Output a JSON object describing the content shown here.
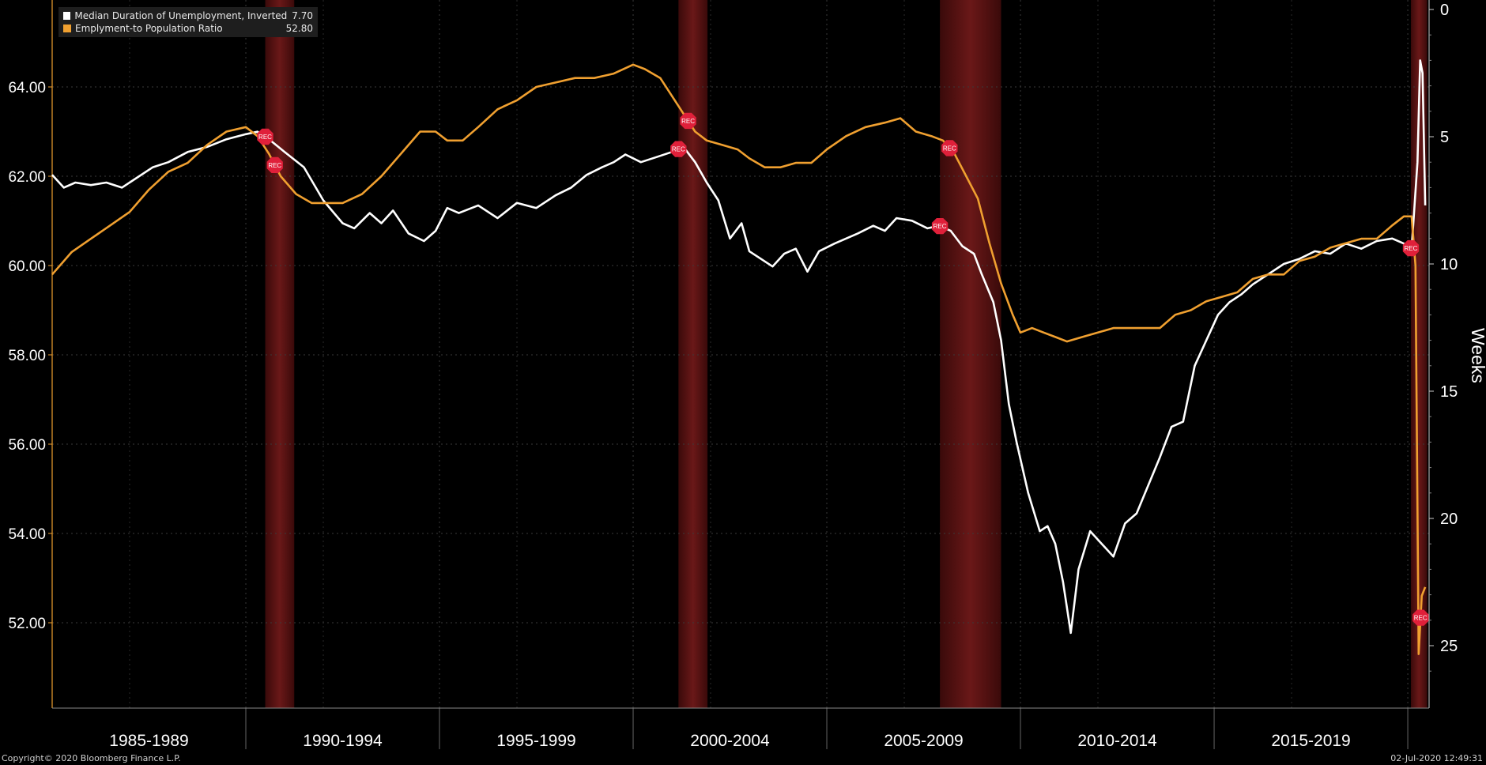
{
  "chart_data": {
    "type": "line",
    "legend_placement": "top-left",
    "grid": true,
    "x_axis": {
      "range": [
        1985.0,
        2020.55
      ],
      "period_labels": [
        {
          "label": "1985-1989",
          "start": 1985,
          "end": 1990
        },
        {
          "label": "1990-1994",
          "start": 1990,
          "end": 1995
        },
        {
          "label": "1995-1999",
          "start": 1995,
          "end": 2000
        },
        {
          "label": "2000-2004",
          "start": 2000,
          "end": 2005
        },
        {
          "label": "2005-2009",
          "start": 2005,
          "end": 2010
        },
        {
          "label": "2010-2014",
          "start": 2010,
          "end": 2015
        },
        {
          "label": "2015-2019",
          "start": 2015,
          "end": 2020
        }
      ]
    },
    "y_left": {
      "range": [
        50.0,
        66.0
      ],
      "ticks": [
        52,
        54,
        56,
        58,
        60,
        62,
        64
      ],
      "tick_labels": [
        "52.00",
        "54.00",
        "56.00",
        "58.00",
        "60.00",
        "62.00",
        "64.00"
      ]
    },
    "y_right": {
      "label": "Weeks",
      "range": [
        0,
        27.5
      ],
      "inverted": true,
      "ticks": [
        0,
        5,
        10,
        15,
        20,
        25
      ],
      "tick_labels": [
        "0",
        "5",
        "10",
        "15",
        "20",
        "25"
      ]
    },
    "recessions": [
      {
        "start": 1990.5,
        "end": 1991.25,
        "label": "REC"
      },
      {
        "start": 2001.17,
        "end": 2001.92,
        "label": "REC"
      },
      {
        "start": 2007.92,
        "end": 2009.5,
        "label": "REC"
      },
      {
        "start": 2020.08,
        "end": 2020.5,
        "label": "REC"
      }
    ],
    "series": [
      {
        "name": "Median Duration of Unemployment, Inverted",
        "last_value": "7.70",
        "color": "#ffffff",
        "axis": "right",
        "points": [
          [
            1985.0,
            6.5
          ],
          [
            1985.3,
            7.0
          ],
          [
            1985.6,
            6.8
          ],
          [
            1986.0,
            6.9
          ],
          [
            1986.4,
            6.8
          ],
          [
            1986.8,
            7.0
          ],
          [
            1987.2,
            6.6
          ],
          [
            1987.6,
            6.2
          ],
          [
            1988.0,
            6.0
          ],
          [
            1988.5,
            5.6
          ],
          [
            1989.0,
            5.4
          ],
          [
            1989.5,
            5.1
          ],
          [
            1990.0,
            4.9
          ],
          [
            1990.3,
            4.8
          ],
          [
            1990.6,
            5.1
          ],
          [
            1991.0,
            5.6
          ],
          [
            1991.5,
            6.2
          ],
          [
            1992.0,
            7.5
          ],
          [
            1992.5,
            8.4
          ],
          [
            1992.8,
            8.6
          ],
          [
            1993.2,
            8.0
          ],
          [
            1993.5,
            8.4
          ],
          [
            1993.8,
            7.9
          ],
          [
            1994.2,
            8.8
          ],
          [
            1994.6,
            9.1
          ],
          [
            1994.9,
            8.7
          ],
          [
            1995.2,
            7.8
          ],
          [
            1995.5,
            8.0
          ],
          [
            1996.0,
            7.7
          ],
          [
            1996.5,
            8.2
          ],
          [
            1997.0,
            7.6
          ],
          [
            1997.5,
            7.8
          ],
          [
            1998.0,
            7.3
          ],
          [
            1998.4,
            7.0
          ],
          [
            1998.8,
            6.5
          ],
          [
            1999.2,
            6.2
          ],
          [
            1999.5,
            6.0
          ],
          [
            1999.8,
            5.7
          ],
          [
            2000.2,
            6.0
          ],
          [
            2000.6,
            5.8
          ],
          [
            2001.0,
            5.6
          ],
          [
            2001.3,
            5.4
          ],
          [
            2001.6,
            6.0
          ],
          [
            2001.9,
            6.8
          ],
          [
            2002.2,
            7.5
          ],
          [
            2002.5,
            9.0
          ],
          [
            2002.8,
            8.4
          ],
          [
            2003.0,
            9.5
          ],
          [
            2003.3,
            9.8
          ],
          [
            2003.6,
            10.1
          ],
          [
            2003.9,
            9.6
          ],
          [
            2004.2,
            9.4
          ],
          [
            2004.5,
            10.3
          ],
          [
            2004.8,
            9.5
          ],
          [
            2005.2,
            9.2
          ],
          [
            2005.5,
            9.0
          ],
          [
            2005.8,
            8.8
          ],
          [
            2006.2,
            8.5
          ],
          [
            2006.5,
            8.7
          ],
          [
            2006.8,
            8.2
          ],
          [
            2007.2,
            8.3
          ],
          [
            2007.6,
            8.6
          ],
          [
            2007.9,
            8.5
          ],
          [
            2008.2,
            8.7
          ],
          [
            2008.5,
            9.3
          ],
          [
            2008.8,
            9.6
          ],
          [
            2009.0,
            10.4
          ],
          [
            2009.3,
            11.5
          ],
          [
            2009.5,
            13.0
          ],
          [
            2009.7,
            15.5
          ],
          [
            2009.9,
            17.0
          ],
          [
            2010.2,
            19.0
          ],
          [
            2010.5,
            20.5
          ],
          [
            2010.7,
            20.3
          ],
          [
            2010.9,
            21.0
          ],
          [
            2011.1,
            22.5
          ],
          [
            2011.3,
            24.5
          ],
          [
            2011.5,
            22.0
          ],
          [
            2011.8,
            20.5
          ],
          [
            2012.1,
            21.0
          ],
          [
            2012.4,
            21.5
          ],
          [
            2012.7,
            20.2
          ],
          [
            2013.0,
            19.8
          ],
          [
            2013.3,
            18.7
          ],
          [
            2013.6,
            17.6
          ],
          [
            2013.9,
            16.4
          ],
          [
            2014.2,
            16.2
          ],
          [
            2014.5,
            14.0
          ],
          [
            2014.8,
            13.0
          ],
          [
            2015.1,
            12.0
          ],
          [
            2015.4,
            11.5
          ],
          [
            2015.7,
            11.2
          ],
          [
            2016.0,
            10.8
          ],
          [
            2016.4,
            10.4
          ],
          [
            2016.8,
            10.0
          ],
          [
            2017.2,
            9.8
          ],
          [
            2017.6,
            9.5
          ],
          [
            2018.0,
            9.6
          ],
          [
            2018.4,
            9.2
          ],
          [
            2018.8,
            9.4
          ],
          [
            2019.2,
            9.1
          ],
          [
            2019.6,
            9.0
          ],
          [
            2019.9,
            9.2
          ],
          [
            2020.1,
            9.4
          ],
          [
            2020.25,
            6.0
          ],
          [
            2020.32,
            2.0
          ],
          [
            2020.38,
            2.5
          ],
          [
            2020.45,
            7.7
          ]
        ]
      },
      {
        "name": "Emplyment-to Population Ratio",
        "last_value": "52.80",
        "color": "#f0a030",
        "axis": "left",
        "points": [
          [
            1985.0,
            59.8
          ],
          [
            1985.5,
            60.3
          ],
          [
            1986.0,
            60.6
          ],
          [
            1986.5,
            60.9
          ],
          [
            1987.0,
            61.2
          ],
          [
            1987.5,
            61.7
          ],
          [
            1988.0,
            62.1
          ],
          [
            1988.5,
            62.3
          ],
          [
            1989.0,
            62.7
          ],
          [
            1989.5,
            63.0
          ],
          [
            1990.0,
            63.1
          ],
          [
            1990.3,
            62.9
          ],
          [
            1990.6,
            62.5
          ],
          [
            1990.9,
            62.0
          ],
          [
            1991.3,
            61.6
          ],
          [
            1991.7,
            61.4
          ],
          [
            1992.0,
            61.4
          ],
          [
            1992.5,
            61.4
          ],
          [
            1993.0,
            61.6
          ],
          [
            1993.5,
            62.0
          ],
          [
            1994.0,
            62.5
          ],
          [
            1994.5,
            63.0
          ],
          [
            1994.9,
            63.0
          ],
          [
            1995.2,
            62.8
          ],
          [
            1995.6,
            62.8
          ],
          [
            1996.0,
            63.1
          ],
          [
            1996.5,
            63.5
          ],
          [
            1997.0,
            63.7
          ],
          [
            1997.5,
            64.0
          ],
          [
            1998.0,
            64.1
          ],
          [
            1998.5,
            64.2
          ],
          [
            1999.0,
            64.2
          ],
          [
            1999.5,
            64.3
          ],
          [
            2000.0,
            64.5
          ],
          [
            2000.3,
            64.4
          ],
          [
            2000.7,
            64.2
          ],
          [
            2001.0,
            63.8
          ],
          [
            2001.3,
            63.4
          ],
          [
            2001.6,
            63.0
          ],
          [
            2001.9,
            62.8
          ],
          [
            2002.3,
            62.7
          ],
          [
            2002.7,
            62.6
          ],
          [
            2003.0,
            62.4
          ],
          [
            2003.4,
            62.2
          ],
          [
            2003.8,
            62.2
          ],
          [
            2004.2,
            62.3
          ],
          [
            2004.6,
            62.3
          ],
          [
            2005.0,
            62.6
          ],
          [
            2005.5,
            62.9
          ],
          [
            2006.0,
            63.1
          ],
          [
            2006.5,
            63.2
          ],
          [
            2006.9,
            63.3
          ],
          [
            2007.3,
            63.0
          ],
          [
            2007.7,
            62.9
          ],
          [
            2008.0,
            62.8
          ],
          [
            2008.3,
            62.5
          ],
          [
            2008.6,
            62.0
          ],
          [
            2008.9,
            61.5
          ],
          [
            2009.2,
            60.5
          ],
          [
            2009.5,
            59.6
          ],
          [
            2009.8,
            58.9
          ],
          [
            2010.0,
            58.5
          ],
          [
            2010.3,
            58.6
          ],
          [
            2010.6,
            58.5
          ],
          [
            2010.9,
            58.4
          ],
          [
            2011.2,
            58.3
          ],
          [
            2011.6,
            58.4
          ],
          [
            2012.0,
            58.5
          ],
          [
            2012.4,
            58.6
          ],
          [
            2012.8,
            58.6
          ],
          [
            2013.2,
            58.6
          ],
          [
            2013.6,
            58.6
          ],
          [
            2014.0,
            58.9
          ],
          [
            2014.4,
            59.0
          ],
          [
            2014.8,
            59.2
          ],
          [
            2015.2,
            59.3
          ],
          [
            2015.6,
            59.4
          ],
          [
            2016.0,
            59.7
          ],
          [
            2016.4,
            59.8
          ],
          [
            2016.8,
            59.8
          ],
          [
            2017.2,
            60.1
          ],
          [
            2017.6,
            60.2
          ],
          [
            2018.0,
            60.4
          ],
          [
            2018.4,
            60.5
          ],
          [
            2018.8,
            60.6
          ],
          [
            2019.2,
            60.6
          ],
          [
            2019.6,
            60.9
          ],
          [
            2019.9,
            61.1
          ],
          [
            2020.1,
            61.1
          ],
          [
            2020.2,
            60.0
          ],
          [
            2020.28,
            51.3
          ],
          [
            2020.36,
            52.6
          ],
          [
            2020.45,
            52.8
          ]
        ]
      }
    ]
  },
  "footer": {
    "copyright": "Copyright© 2020 Bloomberg Finance L.P.",
    "timestamp": "02-Jul-2020 12:49:31"
  }
}
